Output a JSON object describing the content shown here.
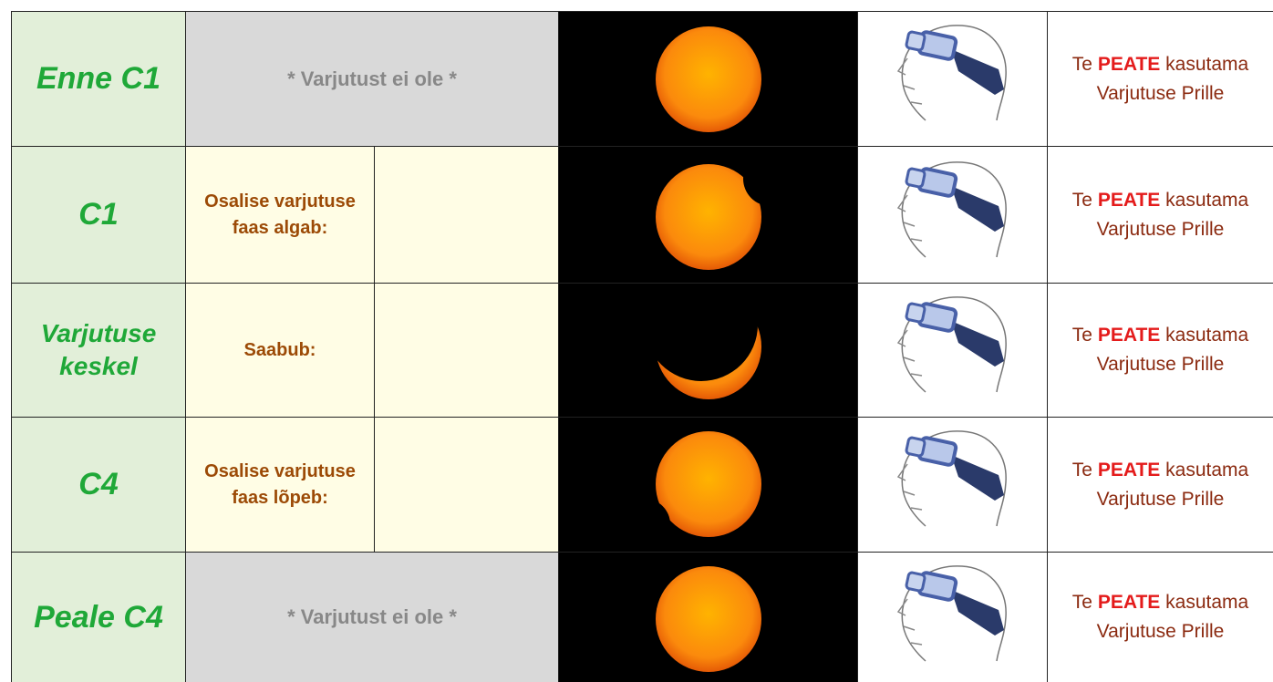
{
  "rows": [
    {
      "phase": "Enne C1",
      "none": "* Varjutust ei ole *",
      "note": {
        "prefix": "Te",
        "emphasis": "PEATE",
        "suffix": "kasutama",
        "line2": "Varjutuse Prille"
      }
    },
    {
      "phase": "C1",
      "label": "Osalise varjutuse faas algab:",
      "note": {
        "prefix": "Te",
        "emphasis": "PEATE",
        "suffix": "kasutama",
        "line2": "Varjutuse Prille"
      }
    },
    {
      "phase": "Varjutuse keskel",
      "label": "Saabub:",
      "note": {
        "prefix": "Te",
        "emphasis": "PEATE",
        "suffix": "kasutama",
        "line2": "Varjutuse Prille"
      }
    },
    {
      "phase": "C4",
      "label": "Osalise varjutuse faas lõpeb:",
      "note": {
        "prefix": "Te",
        "emphasis": "PEATE",
        "suffix": "kasutama",
        "line2": "Varjutuse Prille"
      }
    },
    {
      "phase": "Peale C4",
      "none": "* Varjutust ei ole *",
      "note": {
        "prefix": "Te",
        "emphasis": "PEATE",
        "suffix": "kasutama",
        "line2": "Varjutuse Prille"
      }
    }
  ]
}
